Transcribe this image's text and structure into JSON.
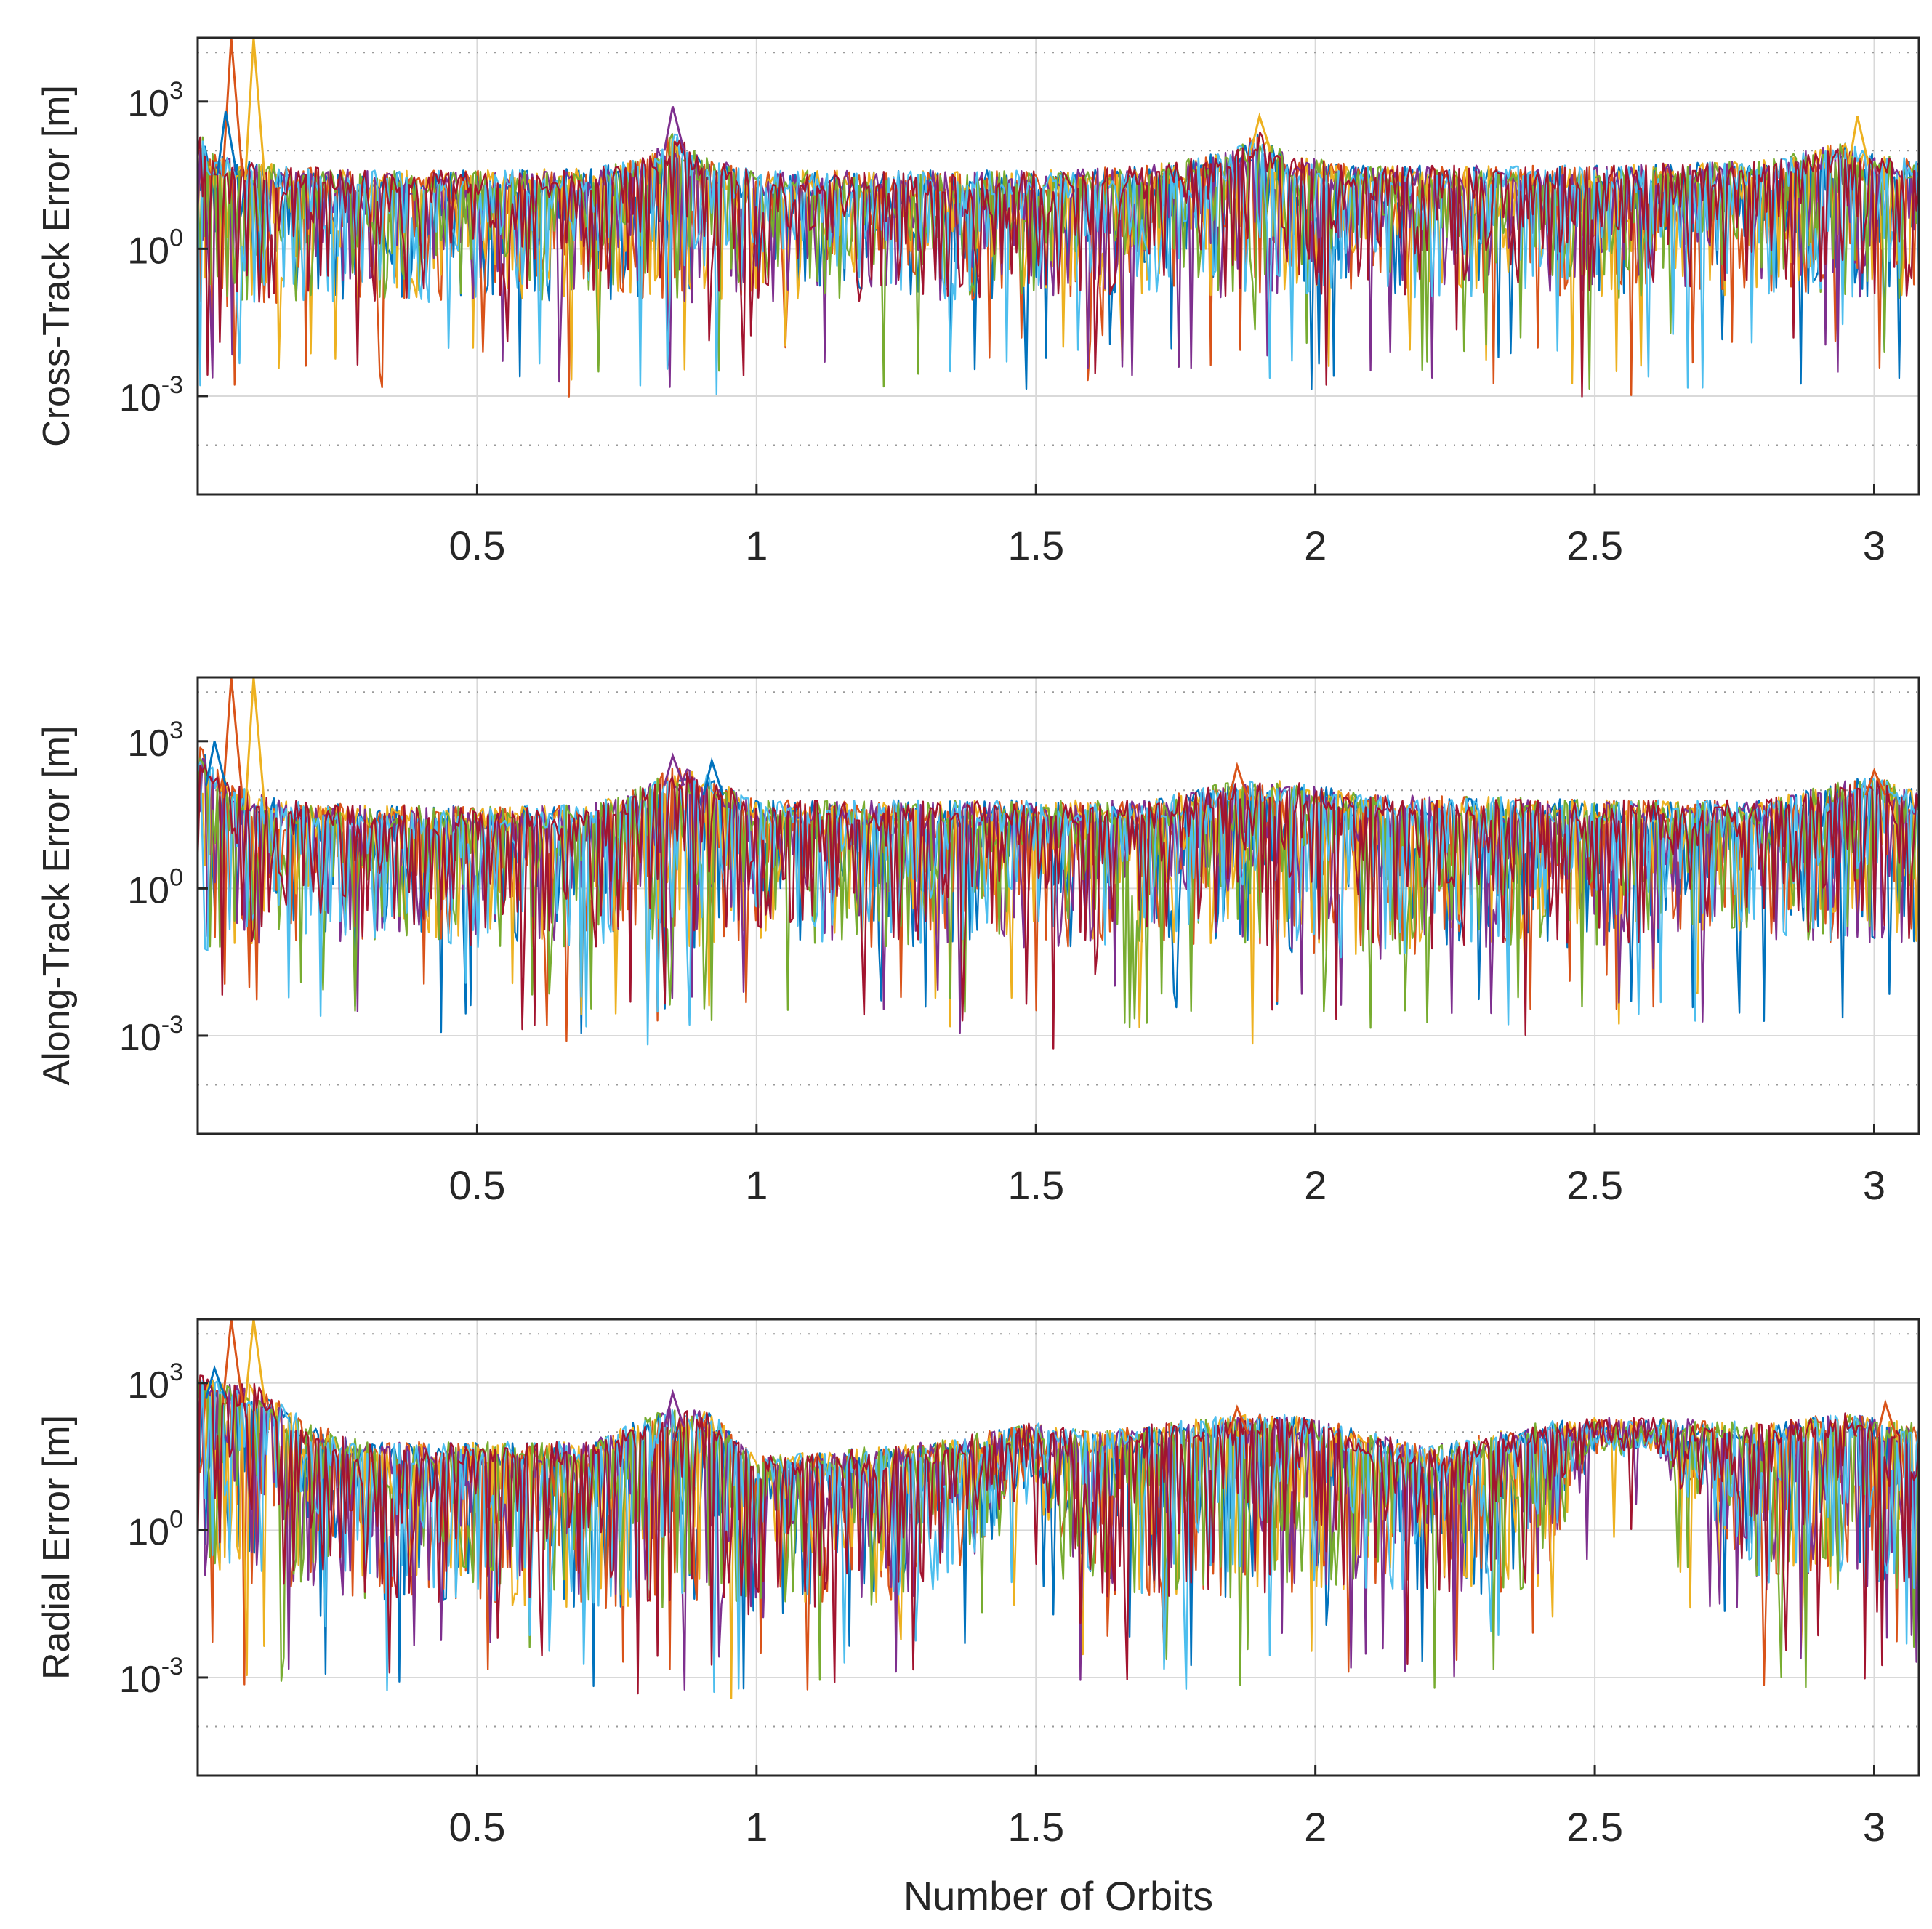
{
  "figure": {
    "xlabel": "Number of Orbits"
  },
  "series_colors": [
    "#0072BD",
    "#D95319",
    "#EDB120",
    "#7E2F8E",
    "#77AC30",
    "#4DBEEE",
    "#A2142F"
  ],
  "chart_data": [
    {
      "type": "line",
      "ylabel": "Cross-Track Error [m]",
      "yscale": "log",
      "xlim": [
        0,
        3.08
      ],
      "ylim_log10": [
        -5,
        4.3
      ],
      "xticks": [
        0.5,
        1,
        1.5,
        2,
        2.5,
        3
      ],
      "xtick_labels": [
        "0.5",
        "1",
        "1.5",
        "2",
        "2.5",
        "3"
      ],
      "yticks": [
        {
          "base": "10",
          "exp": "3",
          "log": 3
        },
        {
          "base": "10",
          "exp": "0",
          "log": 0
        },
        {
          "base": "10",
          "exp": "-3",
          "log": -3
        }
      ],
      "minor_grid_log": [
        -4,
        2,
        4
      ],
      "series_count": 7,
      "envelope": {
        "x": [
          0,
          0.02,
          0.05,
          0.1,
          0.15,
          0.3,
          0.5,
          0.7,
          0.8,
          0.85,
          0.9,
          1.0,
          1.2,
          1.5,
          1.7,
          1.85,
          1.9,
          1.95,
          2.1,
          2.5,
          2.8,
          2.95,
          3.0,
          3.08
        ],
        "upper_log10": [
          2.5,
          2.0,
          1.9,
          1.8,
          1.7,
          1.6,
          1.6,
          1.65,
          1.9,
          2.4,
          1.9,
          1.6,
          1.6,
          1.6,
          1.7,
          2.0,
          2.4,
          1.9,
          1.7,
          1.7,
          1.8,
          2.2,
          2.0,
          1.8
        ],
        "lower_log10": [
          -1.5,
          -1.3,
          -1.2,
          -1.2,
          -1.1,
          -1.1,
          -1.1,
          -1.1,
          -1.1,
          -1.1,
          -1.1,
          -1.1,
          -1.1,
          -1.0,
          -1.0,
          -1.0,
          -1.0,
          -1.0,
          -1.0,
          -1.0,
          -1.0,
          -1.0,
          -1.0,
          -1.0
        ]
      },
      "spikes": [
        {
          "x": 0.06,
          "log10": 4.3,
          "color": 1
        },
        {
          "x": 0.1,
          "log10": 4.3,
          "color": 2
        },
        {
          "x": 0.05,
          "log10": 2.8,
          "color": 0
        },
        {
          "x": 0.85,
          "log10": 2.9,
          "color": 3
        },
        {
          "x": 1.9,
          "log10": 2.7,
          "color": 2
        },
        {
          "x": 2.97,
          "log10": 2.7,
          "color": 2
        }
      ]
    },
    {
      "type": "line",
      "ylabel": "Along-Track Error [m]",
      "yscale": "log",
      "xlim": [
        0,
        3.08
      ],
      "ylim_log10": [
        -5,
        4.3
      ],
      "xticks": [
        0.5,
        1,
        1.5,
        2,
        2.5,
        3
      ],
      "xtick_labels": [
        "0.5",
        "1",
        "1.5",
        "2",
        "2.5",
        "3"
      ],
      "yticks": [
        {
          "base": "10",
          "exp": "3",
          "log": 3
        },
        {
          "base": "10",
          "exp": "0",
          "log": 0
        },
        {
          "base": "10",
          "exp": "-3",
          "log": -3
        }
      ],
      "minor_grid_log": [
        -4,
        2,
        4
      ],
      "series_count": 7,
      "envelope": {
        "x": [
          0,
          0.02,
          0.05,
          0.1,
          0.15,
          0.3,
          0.5,
          0.7,
          0.8,
          0.85,
          0.92,
          1.0,
          1.2,
          1.5,
          1.7,
          1.85,
          1.95,
          2.1,
          2.25,
          2.5,
          2.8,
          2.95,
          3.0,
          3.08
        ],
        "upper_log10": [
          3.0,
          2.6,
          2.3,
          2.0,
          1.8,
          1.7,
          1.7,
          1.7,
          2.1,
          2.5,
          2.3,
          1.8,
          1.8,
          1.8,
          1.8,
          2.2,
          2.2,
          1.9,
          1.9,
          1.8,
          1.8,
          2.2,
          2.3,
          2.0
        ],
        "lower_log10": [
          -1.2,
          -1.3,
          -1.2,
          -1.2,
          -1.1,
          -1.1,
          -1.2,
          -1.2,
          -1.2,
          -1.2,
          -1.2,
          -1.1,
          -1.2,
          -1.2,
          -1.2,
          -1.3,
          -1.3,
          -1.5,
          -1.2,
          -1.2,
          -1.1,
          -1.1,
          -1.1,
          -1.1
        ]
      },
      "spikes": [
        {
          "x": 0.06,
          "log10": 4.3,
          "color": 1
        },
        {
          "x": 0.1,
          "log10": 4.3,
          "color": 2
        },
        {
          "x": 0.03,
          "log10": 3.0,
          "color": 0
        },
        {
          "x": 0.85,
          "log10": 2.7,
          "color": 3
        },
        {
          "x": 0.92,
          "log10": 2.6,
          "color": 0
        },
        {
          "x": 1.86,
          "log10": 2.5,
          "color": 1
        },
        {
          "x": 3.0,
          "log10": 2.4,
          "color": 1
        }
      ]
    },
    {
      "type": "line",
      "ylabel": "Radial Error [m]",
      "yscale": "log",
      "xlim": [
        0,
        3.08
      ],
      "ylim_log10": [
        -5,
        4.3
      ],
      "xticks": [
        0.5,
        1,
        1.5,
        2,
        2.5,
        3
      ],
      "xtick_labels": [
        "0.5",
        "1",
        "1.5",
        "2",
        "2.5",
        "3"
      ],
      "yticks": [
        {
          "base": "10",
          "exp": "3",
          "log": 3
        },
        {
          "base": "10",
          "exp": "0",
          "log": 0
        },
        {
          "base": "10",
          "exp": "-3",
          "log": -3
        }
      ],
      "minor_grid_log": [
        -4,
        2,
        4
      ],
      "series_count": 7,
      "envelope": {
        "x": [
          0,
          0.05,
          0.1,
          0.2,
          0.3,
          0.5,
          0.7,
          0.8,
          0.85,
          0.92,
          1.0,
          1.3,
          1.5,
          1.6,
          1.8,
          1.9,
          2.0,
          2.2,
          2.4,
          2.5,
          2.6,
          2.8,
          2.95,
          3.08
        ],
        "upper_log10": [
          3.2,
          3.0,
          3.0,
          2.2,
          1.8,
          1.8,
          1.8,
          2.3,
          2.5,
          2.4,
          1.5,
          1.8,
          2.2,
          2.0,
          2.3,
          2.4,
          2.3,
          1.7,
          2.2,
          2.3,
          2.3,
          2.2,
          2.4,
          2.2
        ],
        "lower_log10": [
          -1.0,
          -1.0,
          -1.2,
          -1.2,
          -1.4,
          -1.5,
          -1.6,
          -1.6,
          -1.6,
          -1.6,
          -1.8,
          -1.4,
          0.5,
          -1.4,
          -1.4,
          -1.4,
          -1.2,
          -1.4,
          -1.2,
          1.5,
          1.5,
          -1.3,
          -1.2,
          -1.2
        ]
      },
      "spikes": [
        {
          "x": 0.06,
          "log10": 4.3,
          "color": 1
        },
        {
          "x": 0.1,
          "log10": 4.3,
          "color": 2
        },
        {
          "x": 0.03,
          "log10": 3.3,
          "color": 0
        },
        {
          "x": 0.85,
          "log10": 2.8,
          "color": 3
        },
        {
          "x": 1.86,
          "log10": 2.5,
          "color": 1
        },
        {
          "x": 3.02,
          "log10": 2.6,
          "color": 1
        }
      ]
    }
  ]
}
